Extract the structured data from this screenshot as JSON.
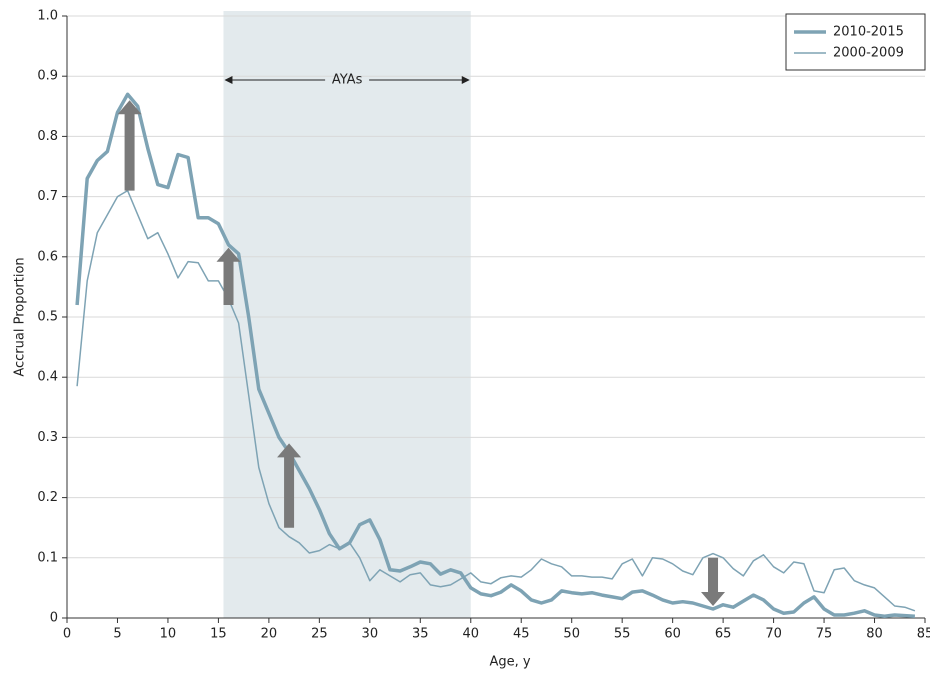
{
  "chart_data": {
    "type": "line",
    "x_label": "Age, y",
    "y_label": "Accrual Proportion",
    "x": [
      1,
      2,
      3,
      4,
      5,
      6,
      7,
      8,
      9,
      10,
      11,
      12,
      13,
      14,
      15,
      16,
      17,
      18,
      19,
      20,
      21,
      22,
      23,
      24,
      25,
      26,
      27,
      28,
      29,
      30,
      31,
      32,
      33,
      34,
      35,
      36,
      37,
      38,
      39,
      40,
      41,
      42,
      43,
      44,
      45,
      46,
      47,
      48,
      49,
      50,
      51,
      52,
      53,
      54,
      55,
      56,
      57,
      58,
      59,
      60,
      61,
      62,
      63,
      64,
      65,
      66,
      67,
      68,
      69,
      70,
      71,
      72,
      73,
      74,
      75,
      76,
      77,
      78,
      79,
      80,
      81,
      82,
      83,
      84
    ],
    "series": [
      {
        "name": "2010-2015",
        "color": "#7ea3b4",
        "width": 3.5,
        "values": [
          0.52,
          0.73,
          0.76,
          0.775,
          0.84,
          0.87,
          0.85,
          0.78,
          0.72,
          0.715,
          0.77,
          0.765,
          0.665,
          0.665,
          0.655,
          0.62,
          0.605,
          0.5,
          0.38,
          0.34,
          0.3,
          0.275,
          0.245,
          0.215,
          0.18,
          0.14,
          0.115,
          0.125,
          0.155,
          0.163,
          0.13,
          0.08,
          0.078,
          0.085,
          0.093,
          0.09,
          0.073,
          0.08,
          0.075,
          0.05,
          0.04,
          0.037,
          0.043,
          0.055,
          0.045,
          0.03,
          0.025,
          0.03,
          0.045,
          0.042,
          0.04,
          0.042,
          0.038,
          0.035,
          0.032,
          0.043,
          0.045,
          0.038,
          0.03,
          0.025,
          0.027,
          0.025,
          0.02,
          0.015,
          0.022,
          0.018,
          0.028,
          0.038,
          0.03,
          0.015,
          0.008,
          0.01,
          0.025,
          0.035,
          0.015,
          0.005,
          0.005,
          0.008,
          0.012,
          0.005,
          0.003,
          0.005,
          0.004,
          0.003
        ]
      },
      {
        "name": "2000-2009",
        "color": "#7ea3b4",
        "width": 1.5,
        "values": [
          0.385,
          0.56,
          0.64,
          0.67,
          0.7,
          0.71,
          0.67,
          0.63,
          0.64,
          0.605,
          0.565,
          0.592,
          0.59,
          0.56,
          0.56,
          0.53,
          0.49,
          0.37,
          0.25,
          0.19,
          0.15,
          0.135,
          0.125,
          0.108,
          0.112,
          0.122,
          0.115,
          0.125,
          0.1,
          0.062,
          0.08,
          0.07,
          0.06,
          0.072,
          0.075,
          0.055,
          0.052,
          0.055,
          0.065,
          0.075,
          0.06,
          0.057,
          0.067,
          0.07,
          0.068,
          0.08,
          0.098,
          0.09,
          0.085,
          0.07,
          0.07,
          0.068,
          0.068,
          0.065,
          0.09,
          0.098,
          0.07,
          0.1,
          0.098,
          0.09,
          0.078,
          0.072,
          0.1,
          0.107,
          0.1,
          0.082,
          0.07,
          0.095,
          0.105,
          0.085,
          0.075,
          0.093,
          0.09,
          0.045,
          0.042,
          0.08,
          0.083,
          0.062,
          0.055,
          0.05,
          0.035,
          0.02,
          0.018,
          0.012
        ]
      }
    ],
    "span": [
      15.5,
      40
    ],
    "span_label": "AYAs",
    "span_color": "#e3eaed",
    "arrows": [
      {
        "x": 6.2,
        "from": 0.71,
        "to": 0.86
      },
      {
        "x": 16,
        "from": 0.52,
        "to": 0.615
      },
      {
        "x": 22,
        "from": 0.15,
        "to": 0.29
      },
      {
        "x": 64,
        "from": 0.1,
        "to": 0.02
      }
    ],
    "arrow_color": "#7a7a7a",
    "xlim": [
      0,
      85
    ],
    "xticks": [
      0,
      5,
      10,
      15,
      20,
      25,
      30,
      35,
      40,
      45,
      50,
      55,
      60,
      65,
      70,
      75,
      80,
      85
    ],
    "ylim": [
      0,
      1
    ],
    "yticks": [
      0,
      0.1,
      0.2,
      0.3,
      0.4,
      0.5,
      0.6,
      0.7,
      0.8,
      0.9,
      {
        "value": 1,
        "label": "1.0"
      }
    ],
    "grid": true,
    "legend": "upper right"
  }
}
